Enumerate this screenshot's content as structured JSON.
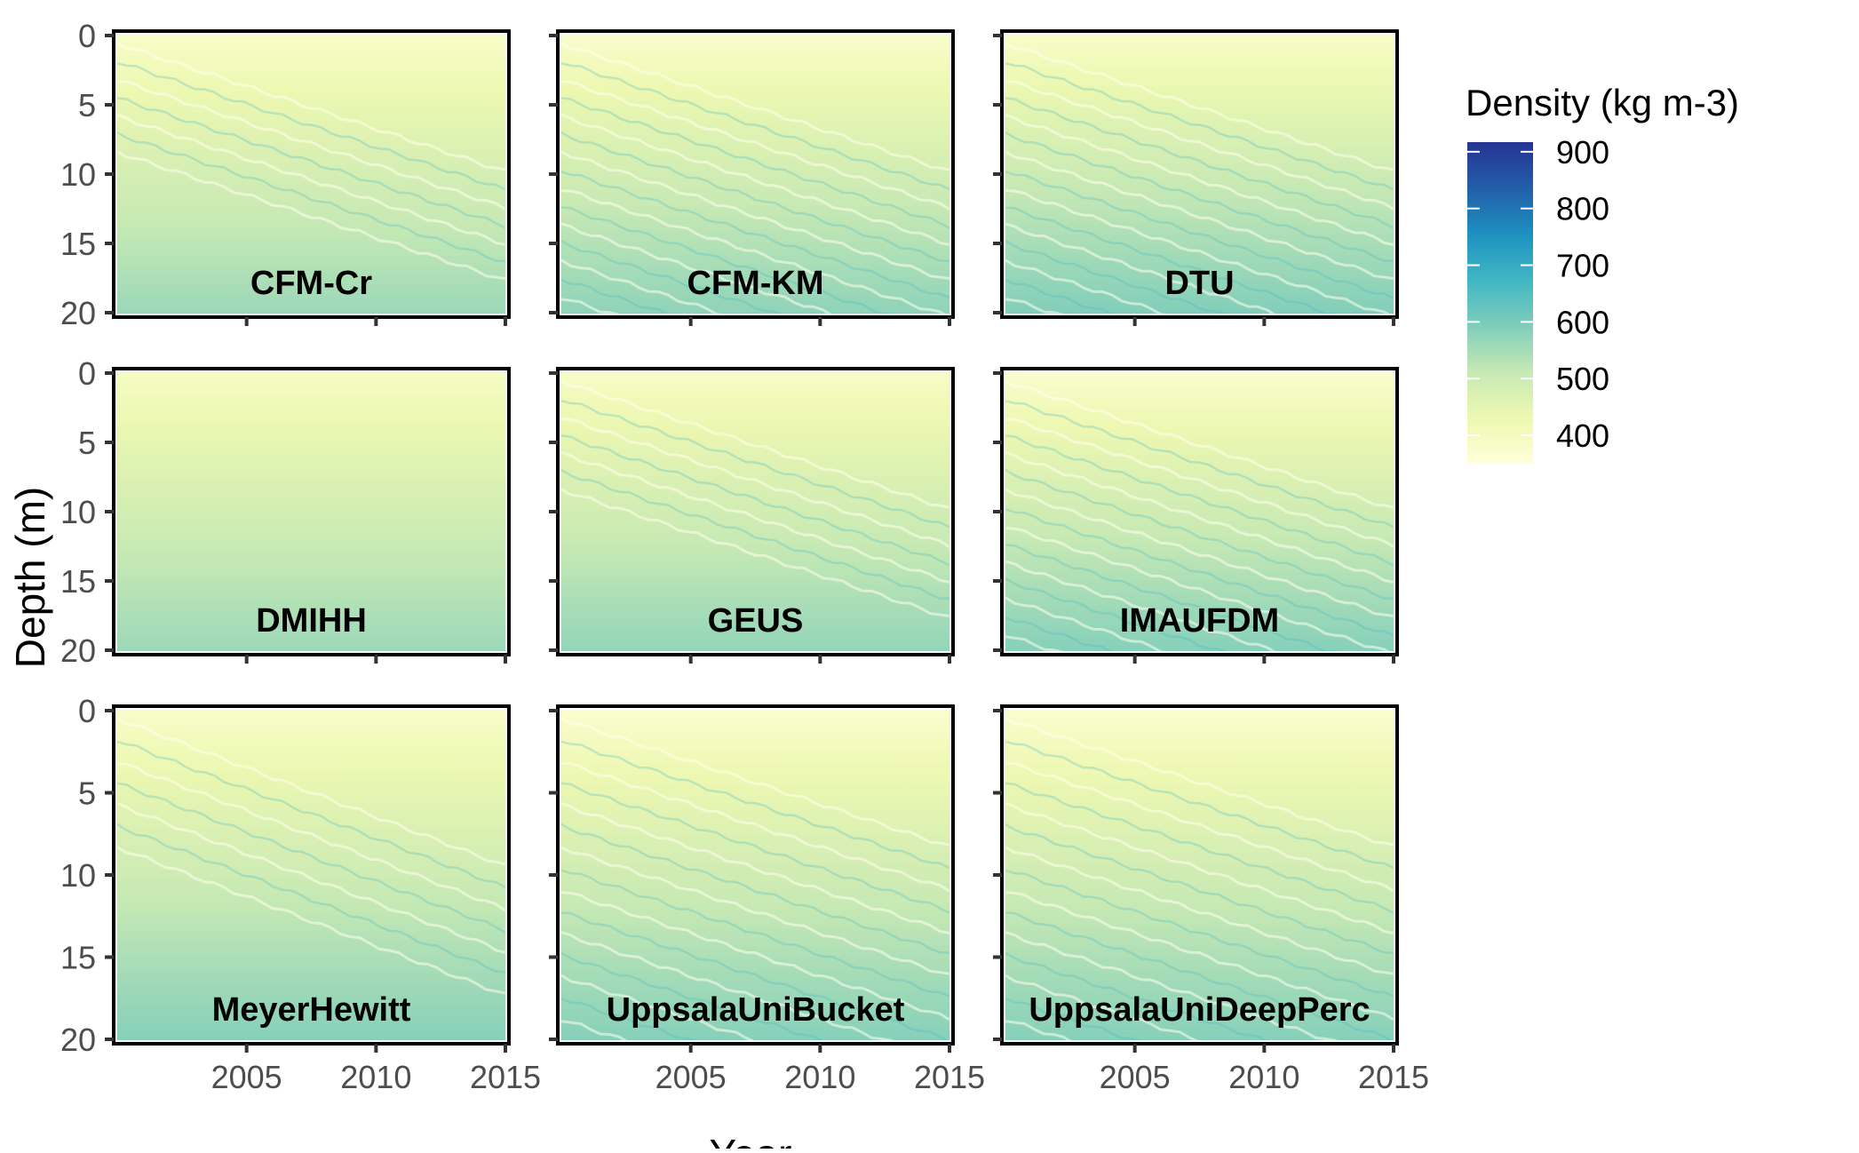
{
  "chart_data": {
    "type": "heatmap",
    "layout": "facet-grid 3x3",
    "xlabel": "Year",
    "ylabel": "Depth (m)",
    "x_ticks": [
      2005,
      2010,
      2015
    ],
    "y_ticks": [
      0,
      5,
      10,
      15,
      20
    ],
    "xlim": [
      2000,
      2015
    ],
    "ylim": [
      20,
      0
    ],
    "y_reversed": true,
    "grid": false,
    "legend": {
      "title": "Density (kg m-3)",
      "placement": "right",
      "ticks": [
        900,
        800,
        700,
        600,
        500,
        400
      ],
      "range": [
        350,
        917
      ],
      "colors": [
        "#ffffd9",
        "#edf8b1",
        "#c7e9b4",
        "#7fcdbb",
        "#41b6c4",
        "#1d91c0",
        "#225ea8",
        "#253494"
      ]
    },
    "panels": [
      {
        "name": "CFM-Cr",
        "surface_density": 380,
        "density_at_20m": 560,
        "layering": "weak"
      },
      {
        "name": "CFM-KM",
        "surface_density": 375,
        "density_at_20m": 575,
        "layering": "strong"
      },
      {
        "name": "DTU",
        "surface_density": 380,
        "density_at_20m": 590,
        "layering": "strong"
      },
      {
        "name": "DMIHH",
        "surface_density": 390,
        "density_at_20m": 560,
        "layering": "none"
      },
      {
        "name": "GEUS",
        "surface_density": 385,
        "density_at_20m": 570,
        "layering": "weak"
      },
      {
        "name": "IMAUFDM",
        "surface_density": 370,
        "density_at_20m": 585,
        "layering": "strong"
      },
      {
        "name": "MeyerHewitt",
        "surface_density": 380,
        "density_at_20m": 585,
        "layering": "weak"
      },
      {
        "name": "UppsalaUniBucket",
        "surface_density": 370,
        "density_at_20m": 585,
        "layering": "strong"
      },
      {
        "name": "UppsalaUniDeepPerc",
        "surface_density": 370,
        "density_at_20m": 585,
        "layering": "strong"
      }
    ]
  }
}
